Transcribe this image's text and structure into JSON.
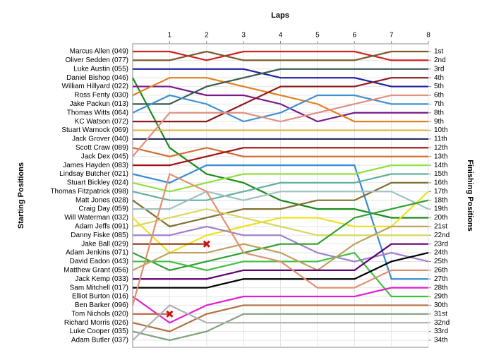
{
  "chart_data": {
    "type": "lap",
    "title": "Laps",
    "y_label": "Starting Positions",
    "y2_label": "Finishing Positions",
    "x": [
      0,
      1,
      2,
      3,
      4,
      5,
      6,
      7,
      8
    ],
    "xlim": [
      0,
      8
    ],
    "xticks": [
      1,
      2,
      3,
      4,
      5,
      6,
      7,
      8
    ],
    "ylim": [
      1,
      34
    ],
    "y_reversed": true,
    "grid": true,
    "yticks": [
      {
        "value": 1,
        "label": "1st"
      },
      {
        "value": 2,
        "label": "2nd"
      },
      {
        "value": 3,
        "label": "3rd"
      },
      {
        "value": 4,
        "label": "4th"
      },
      {
        "value": 5,
        "label": "5th"
      },
      {
        "value": 6,
        "label": "6th"
      },
      {
        "value": 7,
        "label": "7th"
      },
      {
        "value": 8,
        "label": "8th"
      },
      {
        "value": 9,
        "label": "9th"
      },
      {
        "value": 10,
        "label": "10th"
      },
      {
        "value": 11,
        "label": "11th"
      },
      {
        "value": 12,
        "label": "12th"
      },
      {
        "value": 13,
        "label": "13th"
      },
      {
        "value": 14,
        "label": "14th"
      },
      {
        "value": 15,
        "label": "15th"
      },
      {
        "value": 16,
        "label": "16th"
      },
      {
        "value": 17,
        "label": "17th"
      },
      {
        "value": 18,
        "label": "18th"
      },
      {
        "value": 19,
        "label": "19th"
      },
      {
        "value": 20,
        "label": "20th"
      },
      {
        "value": 21,
        "label": "21st"
      },
      {
        "value": 22,
        "label": "22nd"
      },
      {
        "value": 23,
        "label": "23rd"
      },
      {
        "value": 24,
        "label": "24th"
      },
      {
        "value": 25,
        "label": "25th"
      },
      {
        "value": 26,
        "label": "26th"
      },
      {
        "value": 27,
        "label": "27th"
      },
      {
        "value": 28,
        "label": "28th"
      },
      {
        "value": 29,
        "label": "29th"
      },
      {
        "value": 30,
        "label": "30th"
      },
      {
        "value": 31,
        "label": "31st"
      },
      {
        "value": 32,
        "label": "32nd"
      },
      {
        "value": 33,
        "label": "33rd"
      },
      {
        "value": 34,
        "label": "34th"
      }
    ],
    "series": [
      {
        "name": "Marcus Allen (049)",
        "color": "#d02020",
        "values": [
          1,
          1,
          2,
          1,
          1,
          1,
          1,
          2,
          2
        ]
      },
      {
        "name": "Oliver Sedden (077)",
        "color": "#7a5a2a",
        "values": [
          2,
          2,
          1,
          2,
          2,
          2,
          2,
          1,
          1
        ]
      },
      {
        "name": "Luke Austin (055)",
        "color": "#2020a0",
        "values": [
          3,
          3,
          3,
          3,
          4,
          4,
          4,
          5,
          5
        ]
      },
      {
        "name": "Daniel Bishop (046)",
        "color": "#1a8a1a",
        "values": [
          4,
          12,
          15,
          16,
          18,
          19,
          19,
          20,
          20
        ]
      },
      {
        "name": "William Hillyard (022)",
        "color": "#7a1a8a",
        "values": [
          5,
          5,
          6,
          6,
          7,
          9,
          8,
          8,
          8
        ]
      },
      {
        "name": "Ross Fenty (030)",
        "color": "#e08020",
        "values": [
          6,
          4,
          4,
          5,
          6,
          7,
          9,
          9,
          9
        ]
      },
      {
        "name": "Jake Packun (013)",
        "color": "#3a5a50",
        "values": [
          7,
          7,
          5,
          4,
          3,
          3,
          3,
          3,
          3
        ]
      },
      {
        "name": "Thomas Witts (064)",
        "color": "#4090d0",
        "values": [
          8,
          6,
          7,
          9,
          8,
          6,
          6,
          7,
          7
        ]
      },
      {
        "name": "KC Watson (072)",
        "color": "#8a1a1a",
        "values": [
          9,
          9,
          9,
          7,
          5,
          5,
          5,
          4,
          4
        ]
      },
      {
        "name": "Stuart Warnock (069)",
        "color": "#e0b040",
        "values": [
          10,
          10,
          10,
          10,
          10,
          10,
          10,
          10,
          10
        ]
      },
      {
        "name": "Jack Grover (040)",
        "color": "#2a2a60",
        "values": [
          11,
          11,
          11,
          11,
          11,
          11,
          11,
          11,
          11
        ]
      },
      {
        "name": "Scott Craw (089)",
        "color": "#d07030",
        "values": [
          12,
          13,
          12,
          13,
          13,
          13,
          13,
          13,
          13
        ]
      },
      {
        "name": "Jack Dex (045)",
        "color": "#e09080",
        "values": [
          13,
          8,
          8,
          8,
          9,
          8,
          7,
          6,
          6
        ]
      },
      {
        "name": "James Hayden (083)",
        "color": "#a01010",
        "values": [
          14,
          14,
          13,
          12,
          12,
          12,
          12,
          12,
          12
        ]
      },
      {
        "name": "Lindsay Butcher (021)",
        "color": "#3a8ad0",
        "values": [
          15,
          16,
          14,
          14,
          14,
          14,
          14,
          27,
          27
        ]
      },
      {
        "name": "Stuart Bickley (024)",
        "color": "#90e040",
        "values": [
          16,
          17,
          16,
          15,
          15,
          15,
          15,
          14,
          14
        ]
      },
      {
        "name": "Thomas Fitzpatrick (098)",
        "color": "#60b0a0",
        "values": [
          17,
          18,
          18,
          17,
          16,
          16,
          16,
          15,
          15
        ]
      },
      {
        "name": "Matt Jones (028)",
        "color": "#807030",
        "values": [
          18,
          21,
          20,
          19,
          19,
          18,
          18,
          16,
          16
        ]
      },
      {
        "name": "Craig Day (059)",
        "color": "#a0c0c0",
        "values": [
          19,
          19,
          17,
          18,
          17,
          17,
          17,
          17,
          19
        ]
      },
      {
        "name": "Will Waterman (032)",
        "color": "#f0e020",
        "values": [
          20,
          24,
          22,
          21,
          20,
          20,
          21,
          21,
          17
        ]
      },
      {
        "name": "Adam Jeffs (091)",
        "color": "#d8d860",
        "values": [
          21,
          20,
          19,
          20,
          21,
          22,
          22,
          22,
          22
        ]
      },
      {
        "name": "Danny Fiske (085)",
        "color": "#a080d0",
        "values": [
          22,
          22,
          21,
          22,
          22,
          24,
          25,
          24,
          25
        ]
      },
      {
        "name": "Jake Ball (029)",
        "color": "#8a3a10",
        "values": [
          23,
          23,
          23,
          null,
          null,
          null,
          null,
          null,
          null
        ]
      },
      {
        "name": "Adam Jenkins (071)",
        "color": "#30a030",
        "values": [
          24,
          26,
          25,
          24,
          23,
          23,
          20,
          19,
          18
        ]
      },
      {
        "name": "David Eadon (043)",
        "color": "#40c040",
        "values": [
          25,
          25,
          26,
          25,
          25,
          25,
          24,
          29,
          29
        ]
      },
      {
        "name": "Matthew Grant (056)",
        "color": "#c0a060",
        "values": [
          26,
          24,
          24,
          23,
          24,
          26,
          23,
          21,
          21
        ]
      },
      {
        "name": "Jack Kemp (033)",
        "color": "#600070",
        "values": [
          27,
          27,
          27,
          26,
          26,
          26,
          26,
          23,
          23
        ]
      },
      {
        "name": "Sam Mitchell (017)",
        "color": "#000000",
        "values": [
          28,
          28,
          28,
          27,
          27,
          27,
          27,
          25,
          24
        ]
      },
      {
        "name": "Elliot Burton (016)",
        "color": "#e020d0",
        "values": [
          29,
          32,
          30,
          29,
          29,
          29,
          29,
          28,
          28
        ]
      },
      {
        "name": "Ben Barker (096)",
        "color": "#e09070",
        "values": [
          30,
          15,
          17,
          24,
          25,
          28,
          28,
          26,
          26
        ]
      },
      {
        "name": "Tom Nichols (020)",
        "color": "#c06040",
        "values": [
          31,
          31,
          null,
          null,
          null,
          null,
          null,
          null,
          null
        ]
      },
      {
        "name": "Richard Morris (026)",
        "color": "#b07040",
        "values": [
          32,
          33,
          31,
          30,
          30,
          30,
          30,
          30,
          30
        ]
      },
      {
        "name": "Luke Cooper (035)",
        "color": "#80a080",
        "values": [
          33,
          34,
          33,
          31,
          31,
          31,
          31,
          31,
          31
        ]
      },
      {
        "name": "Adam Butler (037)",
        "color": "#b0b0b0",
        "values": [
          34,
          30,
          32,
          32,
          32,
          32,
          32,
          32,
          32
        ]
      }
    ]
  }
}
